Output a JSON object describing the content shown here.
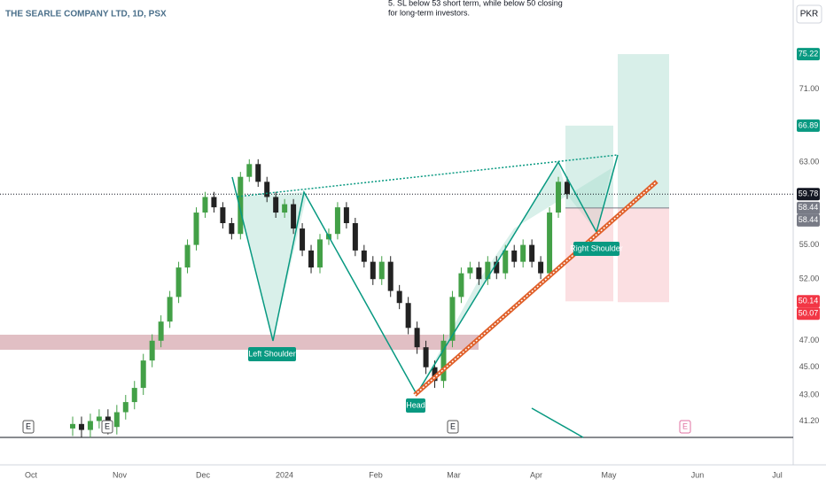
{
  "chart_data": {
    "type": "candlestick",
    "title": "THE SEARLE COMPANY LTD, 1D, PSX",
    "currency": "PKR",
    "note_lines": [
      "5. SL below 53 short term, while below 50 closing",
      "for long-term investors."
    ],
    "pattern_labels": [
      "Left Shoulder",
      "Head",
      "Right Shoulder"
    ],
    "event_markers": [
      "E",
      "E",
      "E",
      "E"
    ],
    "x_labels": [
      "Oct",
      "Nov",
      "Dec",
      "2024",
      "Feb",
      "Mar",
      "Apr",
      "May",
      "Jun",
      "Jul"
    ],
    "log": true,
    "ylim": [
      38.34,
      82.2
    ],
    "yticks": [
      {
        "value": 41.2,
        "label": "41.20"
      },
      {
        "value": 43,
        "label": "43.00"
      },
      {
        "value": 45,
        "label": "45.00"
      },
      {
        "value": 47,
        "label": "47.00"
      },
      {
        "value": 52,
        "label": "52.00"
      },
      {
        "value": 55,
        "label": "55.00"
      },
      {
        "value": 63,
        "label": "63.00"
      },
      {
        "value": 71,
        "label": "71.00"
      }
    ],
    "up_color": "#43a047",
    "down_color": "#222222",
    "open": [
      40.7,
      41.0,
      40.6,
      41.2,
      41.5,
      40.8,
      41.8,
      42.5,
      43.5,
      45.5,
      47.0,
      48.5,
      50.5,
      53.0,
      55.0,
      58.0,
      59.5,
      58.5,
      57.0,
      56.0,
      61.5,
      62.8,
      61.0,
      59.5,
      58.0,
      58.8,
      56.5,
      54.5,
      53.0,
      55.5,
      56.0,
      58.5,
      57.0,
      54.5,
      53.5,
      52.0,
      53.5,
      51.0,
      50.0,
      48.0,
      46.5,
      45.0,
      44.0,
      47.0,
      50.5,
      52.5,
      53.0,
      52.0,
      53.5,
      52.5,
      54.5,
      53.5,
      55.0,
      53.5,
      52.5,
      58.0,
      61.0
    ],
    "high": [
      41.5,
      41.5,
      41.7,
      42.0,
      42.0,
      42.3,
      43.0,
      44.0,
      46.0,
      47.5,
      49.0,
      51.0,
      53.5,
      55.5,
      58.5,
      60.0,
      60.0,
      59.0,
      57.5,
      62.0,
      63.3,
      63.3,
      61.5,
      60.0,
      59.3,
      59.3,
      57.0,
      55.0,
      56.0,
      56.5,
      59.0,
      59.0,
      57.5,
      55.0,
      54.0,
      54.0,
      54.0,
      51.5,
      50.5,
      48.5,
      47.0,
      45.5,
      47.5,
      51.0,
      53.0,
      53.5,
      53.5,
      54.0,
      54.0,
      55.0,
      55.0,
      55.5,
      55.5,
      54.0,
      58.5,
      61.5,
      61.5
    ],
    "low": [
      40.2,
      40.1,
      40.1,
      40.7,
      40.3,
      40.3,
      41.3,
      42.0,
      43.0,
      45.0,
      46.5,
      48.0,
      50.0,
      52.5,
      54.5,
      57.5,
      58.0,
      56.5,
      55.5,
      55.5,
      61.0,
      60.5,
      59.0,
      57.5,
      57.5,
      56.0,
      54.0,
      52.5,
      52.5,
      55.0,
      55.5,
      56.5,
      54.0,
      53.0,
      51.5,
      51.5,
      50.5,
      49.5,
      47.5,
      46.0,
      44.5,
      43.5,
      43.5,
      46.5,
      50.0,
      52.0,
      51.5,
      51.5,
      52.0,
      52.0,
      53.0,
      53.0,
      53.0,
      52.0,
      52.0,
      57.5,
      59.3
    ],
    "close": [
      41.0,
      40.6,
      41.2,
      41.5,
      40.8,
      41.8,
      42.5,
      43.5,
      45.5,
      47.0,
      48.5,
      50.5,
      53.0,
      55.0,
      58.0,
      59.5,
      58.5,
      57.0,
      56.0,
      61.5,
      62.8,
      61.0,
      59.5,
      58.0,
      58.8,
      56.5,
      54.5,
      53.0,
      55.5,
      56.0,
      58.5,
      57.0,
      54.5,
      53.5,
      52.0,
      53.5,
      51.0,
      50.0,
      48.0,
      46.5,
      45.0,
      44.0,
      47.0,
      50.5,
      52.5,
      53.0,
      52.0,
      53.5,
      52.5,
      54.5,
      53.5,
      55.0,
      53.5,
      52.5,
      58.0,
      61.0,
      59.78
    ],
    "price_labels": [
      {
        "value": 75.22,
        "label": "75.22",
        "color": "#089981"
      },
      {
        "value": 66.89,
        "label": "66.89",
        "color": "#089981"
      },
      {
        "value": 59.78,
        "label": "59.78",
        "color": "#131722"
      },
      {
        "value": 58.44,
        "label": "58.44",
        "color": "#787b86"
      },
      {
        "value": 58.44,
        "label": "58.44",
        "color": "#787b86"
      },
      {
        "value": 50.14,
        "label": "50.14",
        "color": "#f23645"
      },
      {
        "value": 50.07,
        "label": "50.07",
        "color": "#f23645"
      }
    ]
  }
}
